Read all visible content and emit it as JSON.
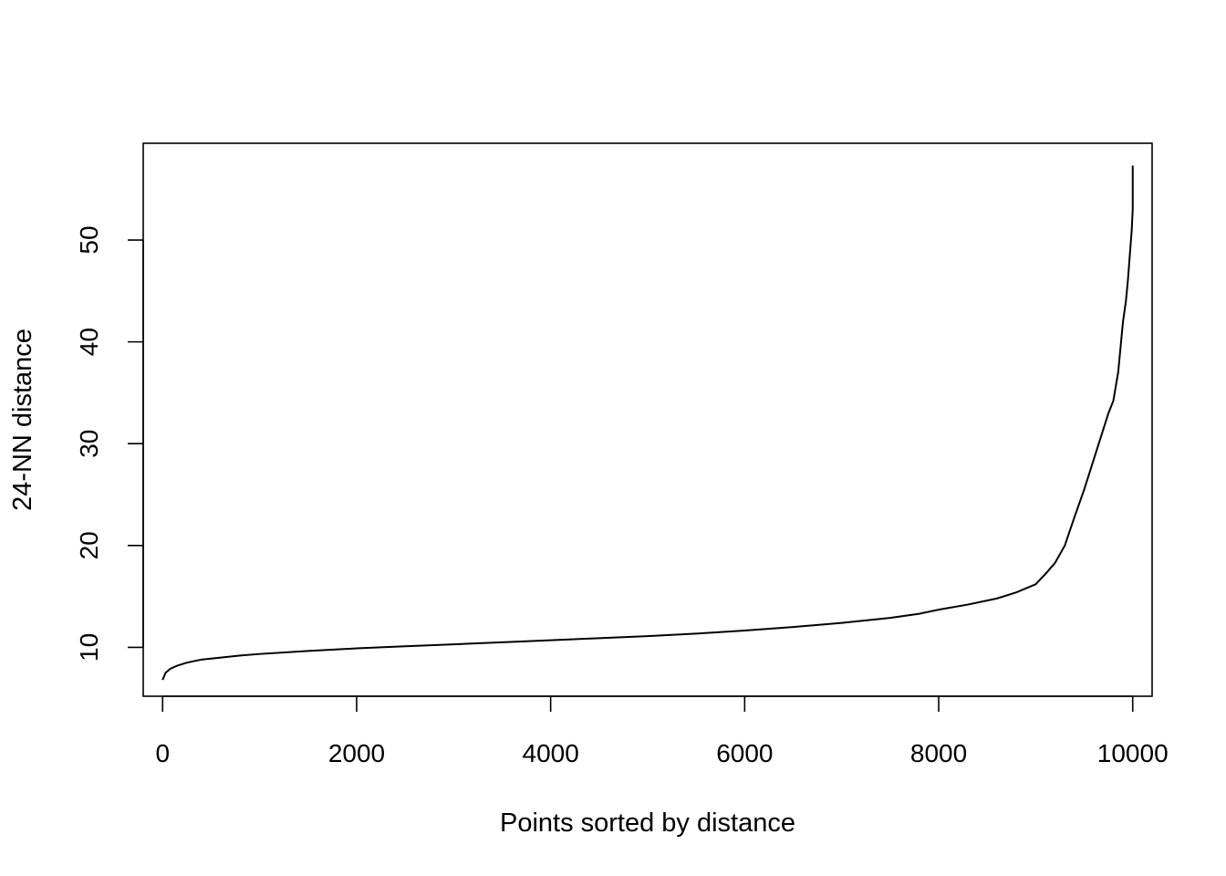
{
  "chart_data": {
    "type": "line",
    "title": "",
    "xlabel": "Points sorted by distance",
    "ylabel": "24-NN distance",
    "xlim": [
      -200,
      10200
    ],
    "ylim": [
      5.2,
      59.5
    ],
    "x_ticks": [
      0,
      2000,
      4000,
      6000,
      8000,
      10000
    ],
    "x_tick_labels": [
      "0",
      "2000",
      "4000",
      "6000",
      "8000",
      "10000"
    ],
    "y_ticks": [
      10,
      20,
      30,
      40,
      50
    ],
    "y_tick_labels": [
      "10",
      "20",
      "30",
      "40",
      "50"
    ],
    "grid": false,
    "legend": "none",
    "line_color": "#000000",
    "series": [
      {
        "x": [
          0,
          30,
          80,
          150,
          250,
          400,
          600,
          800,
          1000,
          1500,
          2000,
          2500,
          3000,
          3500,
          4000,
          4500,
          5000,
          5500,
          6000,
          6500,
          7000,
          7500,
          7800,
          8000,
          8300,
          8600,
          8800,
          9000,
          9100,
          9200,
          9300,
          9400,
          9500,
          9600,
          9700,
          9750,
          9800,
          9850,
          9880,
          9900,
          9930,
          9950,
          9970,
          9990,
          10000,
          10000
        ],
        "y": [
          6.8,
          7.5,
          7.9,
          8.2,
          8.5,
          8.8,
          9.0,
          9.2,
          9.35,
          9.65,
          9.9,
          10.1,
          10.3,
          10.5,
          10.7,
          10.9,
          11.1,
          11.35,
          11.65,
          12.0,
          12.4,
          12.9,
          13.3,
          13.7,
          14.2,
          14.8,
          15.4,
          16.2,
          17.2,
          18.3,
          20.0,
          22.8,
          25.5,
          28.5,
          31.5,
          33.0,
          34.2,
          37.0,
          40.0,
          42.0,
          44.0,
          46.0,
          48.5,
          51.0,
          53.0,
          57.3
        ]
      }
    ]
  }
}
